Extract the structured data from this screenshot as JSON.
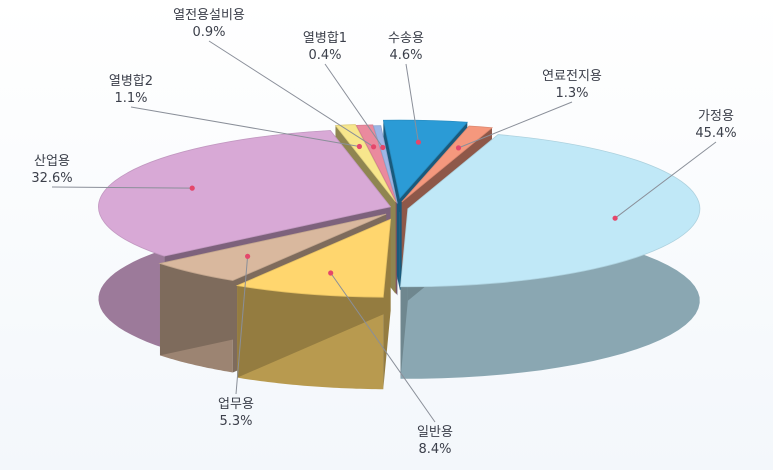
{
  "chart_data": {
    "type": "pie",
    "slices": [
      {
        "label": "가정용",
        "value": 45.4,
        "value_label": "45.4%",
        "color": "#c0e8f7"
      },
      {
        "label": "일반용",
        "value": 8.4,
        "value_label": "8.4%",
        "color": "#ffd66e"
      },
      {
        "label": "업무용",
        "value": 5.3,
        "value_label": "5.3%",
        "color": "#d9b89e"
      },
      {
        "label": "산업용",
        "value": 32.6,
        "value_label": "32.6%",
        "color": "#d8a9d6"
      },
      {
        "label": "열병합2",
        "value": 1.1,
        "value_label": "1.1%",
        "color": "#f7e68c"
      },
      {
        "label": "열전용설비용",
        "value": 0.9,
        "value_label": "0.9%",
        "color": "#ea8a9e"
      },
      {
        "label": "열병합1",
        "value": 0.4,
        "value_label": "0.4%",
        "color": "#9db6e6"
      },
      {
        "label": "수송용",
        "value": 4.6,
        "value_label": "4.6%",
        "color": "#2b9bd6"
      },
      {
        "label": "연료전지용",
        "value": 1.3,
        "value_label": "1.3%",
        "color": "#f5987d"
      }
    ]
  }
}
